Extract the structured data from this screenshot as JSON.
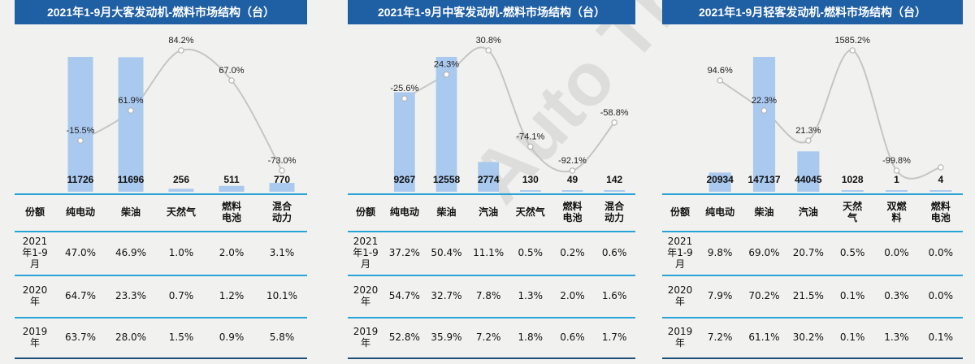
{
  "watermark": "Auto Thinker",
  "colors": {
    "bar": "#a9c9ef",
    "line": "#c5c5c5",
    "title_bg": "#1f5fa4",
    "rule": "#2aa3d8"
  },
  "table_header": "份额",
  "chart_data": [
    {
      "type": "bar",
      "title": "2021年1-9月大客发动机-燃料市场结构（台）",
      "categories": [
        "纯电动",
        "柴油",
        "天然气",
        "燃料电池",
        "混合动力"
      ],
      "series": [
        {
          "values": [
            11726,
            11696,
            256,
            511,
            770
          ]
        }
      ],
      "line": {
        "values": [
          -15.5,
          61.9,
          84.2,
          67.0,
          -73.0
        ],
        "labels": [
          "-15.5%",
          "61.9%",
          "84.2%",
          "67.0%",
          "-73.0%"
        ]
      },
      "table": {
        "header": [
          "纯电动",
          "柴油",
          "天然气",
          "燃料\n电池",
          "混合\n动力"
        ],
        "rows": [
          {
            "label": "2021\n年1-9\n月",
            "values": [
              "47.0%",
              "46.9%",
              "1.0%",
              "2.0%",
              "3.1%"
            ]
          },
          {
            "label": "2020\n年",
            "values": [
              "64.7%",
              "23.3%",
              "0.7%",
              "1.2%",
              "10.1%"
            ]
          },
          {
            "label": "2019\n年",
            "values": [
              "63.7%",
              "28.0%",
              "1.5%",
              "0.9%",
              "5.8%"
            ]
          }
        ]
      }
    },
    {
      "type": "bar",
      "title": "2021年1-9月中客发动机-燃料市场结构（台）",
      "categories": [
        "纯电动",
        "柴油",
        "汽油",
        "天然气",
        "燃料电池",
        "混合动力"
      ],
      "series": [
        {
          "values": [
            9267,
            12558,
            2774,
            130,
            49,
            142
          ]
        }
      ],
      "line": {
        "values": [
          -25.6,
          24.3,
          30.8,
          -74.1,
          -92.1,
          -58.8
        ],
        "labels": [
          "-25.6%",
          "24.3%",
          "30.8%",
          "-74.1%",
          "-92.1%",
          "-58.8%"
        ]
      },
      "table": {
        "header": [
          "纯电动",
          "柴油",
          "汽油",
          "天然气",
          "燃料\n电池",
          "混合\n动力"
        ],
        "rows": [
          {
            "label": "2021\n年1-9\n月",
            "values": [
              "37.2%",
              "50.4%",
              "11.1%",
              "0.5%",
              "0.2%",
              "0.6%"
            ]
          },
          {
            "label": "2020\n年",
            "values": [
              "54.7%",
              "32.7%",
              "7.8%",
              "1.3%",
              "2.0%",
              "1.6%"
            ]
          },
          {
            "label": "2019\n年",
            "values": [
              "52.8%",
              "35.9%",
              "7.2%",
              "1.8%",
              "0.6%",
              "1.7%"
            ]
          }
        ]
      }
    },
    {
      "type": "bar",
      "title": "2021年1-9月轻客发动机-燃料市场结构（台）",
      "categories": [
        "纯电动",
        "柴油",
        "汽油",
        "天然气",
        "双燃料",
        "燃料电池"
      ],
      "series": [
        {
          "values": [
            20934,
            147137,
            44045,
            1028,
            1,
            4
          ]
        }
      ],
      "line": {
        "values": [
          94.6,
          22.3,
          21.3,
          1585.2,
          -99.8,
          null
        ],
        "labels": [
          "94.6%",
          "22.3%",
          "21.3%",
          "1585.2%",
          "-99.8%",
          ""
        ]
      },
      "table": {
        "header": [
          "纯电动",
          "柴油",
          "汽油",
          "天然\n气",
          "双燃\n料",
          "燃料\n电池"
        ],
        "rows": [
          {
            "label": "2021\n年1-9\n月",
            "values": [
              "9.8%",
              "69.0%",
              "20.7%",
              "0.5%",
              "0.0%",
              "0.0%"
            ]
          },
          {
            "label": "2020\n年",
            "values": [
              "7.9%",
              "70.2%",
              "21.5%",
              "0.1%",
              "0.3%",
              "0.0%"
            ]
          },
          {
            "label": "2019\n年",
            "values": [
              "7.2%",
              "61.1%",
              "30.2%",
              "0.1%",
              "1.3%",
              "0.1%"
            ]
          }
        ]
      }
    }
  ]
}
